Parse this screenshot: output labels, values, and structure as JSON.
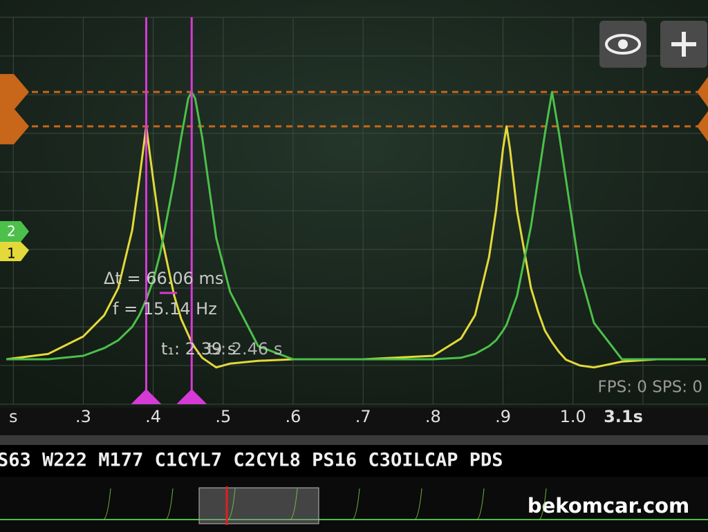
{
  "chart_data": {
    "type": "line",
    "x": [
      2.19,
      2.25,
      2.3,
      2.33,
      2.35,
      2.37,
      2.38,
      2.39,
      2.4,
      2.41,
      2.43,
      2.44,
      2.45,
      2.455,
      2.46,
      2.47,
      2.49,
      2.51,
      2.55,
      2.6,
      2.7,
      2.8,
      2.84,
      2.86,
      2.88,
      2.89,
      2.9,
      2.905,
      2.91,
      2.92,
      2.94,
      2.95,
      2.96,
      2.97,
      2.98,
      2.99,
      3.01,
      3.03,
      3.07,
      3.12,
      3.19
    ],
    "series": [
      {
        "name": "1",
        "color": "#e3d93a",
        "values": [
          1.16,
          1.3,
          1.75,
          2.3,
          3.0,
          4.5,
          5.8,
          7.18,
          5.8,
          4.5,
          2.8,
          2.2,
          1.8,
          1.6,
          1.45,
          1.2,
          0.95,
          1.05,
          1.12,
          1.16,
          1.16,
          1.25,
          1.7,
          2.3,
          3.8,
          5.0,
          6.6,
          7.18,
          6.6,
          5.0,
          3.0,
          2.4,
          1.9,
          1.6,
          1.35,
          1.15,
          1.0,
          0.95,
          1.1,
          1.16,
          1.16
        ]
      },
      {
        "name": "2",
        "color": "#4cc04a",
        "values": [
          1.16,
          1.16,
          1.25,
          1.45,
          1.65,
          2.0,
          2.3,
          2.7,
          3.2,
          3.9,
          5.8,
          6.9,
          7.9,
          8.07,
          7.9,
          6.9,
          4.3,
          2.9,
          1.5,
          1.16,
          1.16,
          1.16,
          1.2,
          1.3,
          1.5,
          1.65,
          1.9,
          2.05,
          2.3,
          2.8,
          4.6,
          5.8,
          7.0,
          8.07,
          7.0,
          5.8,
          3.4,
          2.1,
          1.16,
          1.16,
          1.16
        ]
      }
    ],
    "xlim": [
      2.181,
      3.193
    ],
    "ylim": [
      0,
      10
    ],
    "xticks": [
      {
        "value": 2.2,
        "label": "s"
      },
      {
        "value": 2.3,
        "label": ".3"
      },
      {
        "value": 2.4,
        "label": ".4"
      },
      {
        "value": 2.5,
        "label": ".5"
      },
      {
        "value": 2.6,
        "label": ".6"
      },
      {
        "value": 2.7,
        "label": ".7"
      },
      {
        "value": 2.8,
        "label": ".8"
      },
      {
        "value": 2.9,
        "label": ".9"
      },
      {
        "value": 3.0,
        "label": "1.0"
      },
      {
        "value": 3.1,
        "label": "3.1s"
      }
    ],
    "grid": true,
    "x_cursors": [
      2.39,
      2.455
    ],
    "x_cursor_color": "#d63ad6",
    "y_cursors": [
      8.07,
      7.18
    ],
    "y_cursor_color": "#c8661a",
    "annotations": [
      "Δt = 66.06 ms",
      "f = 15.14 Hz",
      "t₁: 2.39 s",
      "t₂: 2.46 s"
    ],
    "status": "FPS: 0  SPS: 0"
  },
  "footer": {
    "channels_text": "S63 W222 M177 C1CYL7 C2CYL8 PS16 C3OILCAP PDS",
    "watermark": "bekomcar.com"
  }
}
